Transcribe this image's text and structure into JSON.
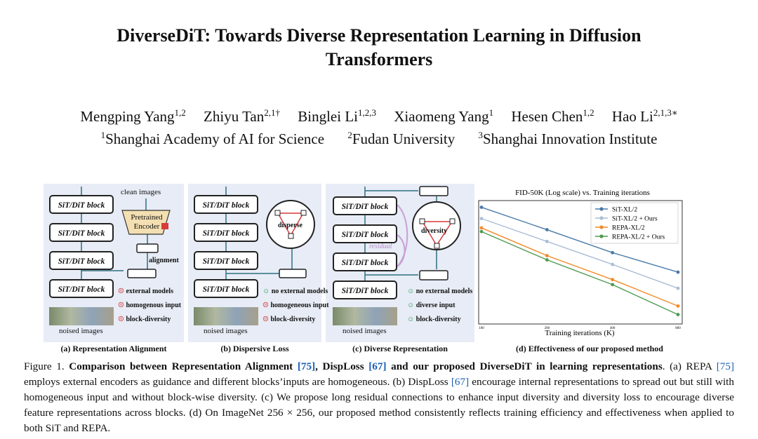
{
  "paper": {
    "title_line1": "DiverseDiT: Towards Diverse Representation Learning in Diffusion",
    "title_line2": "Transformers",
    "authors": [
      {
        "name": "Mengping Yang",
        "sup": "1,2"
      },
      {
        "name": "Zhiyu Tan",
        "sup": "2,1†"
      },
      {
        "name": "Binglei Li",
        "sup": "1,2,3"
      },
      {
        "name": "Xiaomeng Yang",
        "sup": "1"
      },
      {
        "name": "Hesen Chen",
        "sup": "1,2"
      },
      {
        "name": "Hao Li",
        "sup": "2,1,3∗"
      }
    ],
    "affiliations": [
      {
        "sup": "1",
        "name": "Shanghai Academy of AI for Science"
      },
      {
        "sup": "2",
        "name": "Fudan University"
      },
      {
        "sup": "3",
        "name": "Shanghai Innovation Institute"
      }
    ]
  },
  "figure": {
    "block_label": "SiT/DiT block",
    "noised_images": "noised images",
    "panel_a": {
      "label": "(a) Representation Alignment",
      "clean_images": "clean images",
      "encoder": "Pretrained Encoder",
      "alignment": "alignment",
      "legend": [
        "external models",
        "homogenous input",
        "block-diversity"
      ]
    },
    "panel_b": {
      "label": "(b) Dispersive Loss",
      "disperse": "disperse",
      "legend": [
        "no external models",
        "homogeneous input",
        "block-diversity"
      ]
    },
    "panel_c": {
      "label": "(c) Diverse Representation",
      "diversity": "diversity",
      "residual": "residual",
      "legend": [
        "no external models",
        "diverse input",
        "block-diversity"
      ]
    },
    "panel_d": {
      "label": "(d) Effectiveness of our proposed method"
    }
  },
  "chart_data": {
    "type": "line",
    "title": "FID-50K (Log scale) vs. Training iterations",
    "xlabel": "Training iterations (K)",
    "ylabel": "",
    "x": [
      100,
      200,
      400,
      800
    ],
    "x_tick_labels": [
      "100",
      "200",
      "400",
      "800"
    ],
    "series": [
      {
        "name": "SiT-XL/2",
        "color": "#4a7aa8",
        "values": [
          130,
          85,
          55,
          38
        ]
      },
      {
        "name": "SiT-XL/2 + Ours",
        "color": "#a9bdd6",
        "values": [
          105,
          68,
          44,
          28
        ]
      },
      {
        "name": "REPA-XL/2",
        "color": "#f28a2b",
        "values": [
          88,
          52,
          33,
          20
        ]
      },
      {
        "name": "REPA-XL/2 + Ours",
        "color": "#4e9a52",
        "values": [
          82,
          48,
          30,
          17
        ]
      }
    ],
    "ylim": [
      15,
      140
    ],
    "legend_position": "top-right",
    "grid": false
  },
  "caption": {
    "prefix": "Figure 1.",
    "bold_a": "Comparison between Representation Alignment",
    "cite_75": "[75]",
    "bold_b": ", DispLoss",
    "cite_67": "[67]",
    "bold_c": "and our proposed DiverseDiT in learning representations",
    "rest_1": ". (a) REPA",
    "rest_2": "employs external encoders as guidance and different blocks’inputs are homogeneous. (b) DispLoss",
    "rest_3": "encourage internal representations to spread out but still with homogeneous input and without block-wise diversity. (c) We propose long residual connections to enhance input diversity and diversity loss to encourage diverse feature representations across blocks. (d) On ImageNet 256 × 256, our proposed method consistently reflects training efficiency and effectiveness when applied to both SiT and REPA."
  }
}
